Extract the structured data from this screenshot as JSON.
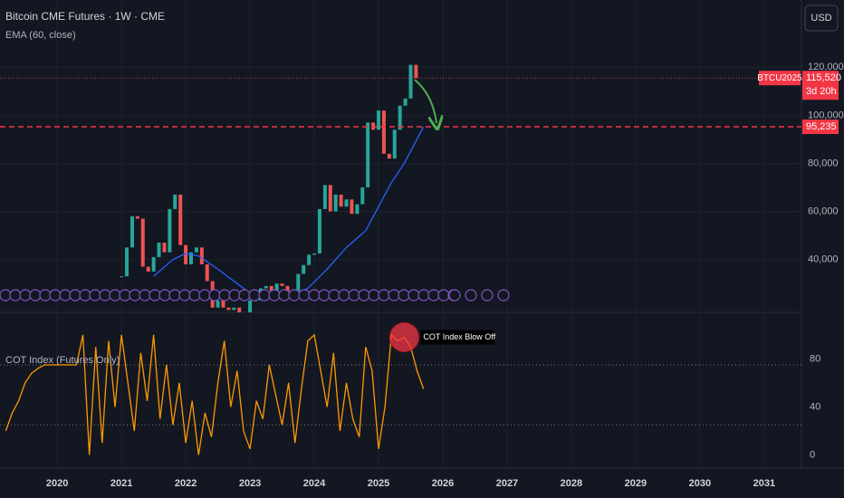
{
  "chart_data": [
    {
      "type": "candlestick",
      "title": "Bitcoin CME Futures · 1W · CME",
      "x": [
        2021.0,
        2021.083,
        2021.167,
        2021.25,
        2021.333,
        2021.417,
        2021.5,
        2021.583,
        2021.667,
        2021.75,
        2021.833,
        2021.917,
        2022.0,
        2022.083,
        2022.167,
        2022.25,
        2022.333,
        2022.417,
        2022.5,
        2022.583,
        2022.667,
        2022.75,
        2022.833,
        2022.917,
        2023.0,
        2023.083,
        2023.167,
        2023.25,
        2023.333,
        2023.417,
        2023.5,
        2023.583,
        2023.667,
        2023.75,
        2023.833,
        2023.917,
        2024.0,
        2024.083,
        2024.167,
        2024.25,
        2024.333,
        2024.417,
        2024.5,
        2024.583,
        2024.667,
        2024.75,
        2024.833,
        2024.917,
        2025.0,
        2025.083,
        2025.167,
        2025.25,
        2025.333,
        2025.417,
        2025.5,
        2025.583
      ],
      "values": [
        33000,
        45000,
        58000,
        57000,
        37000,
        35000,
        41000,
        47000,
        43000,
        61000,
        67000,
        46000,
        38000,
        43000,
        45000,
        38000,
        31000,
        20000,
        23000,
        20000,
        19000,
        20000,
        17000,
        16500,
        23000,
        23000,
        28000,
        29000,
        27000,
        30000,
        29000,
        26000,
        27000,
        34000,
        37700,
        42000,
        42500,
        61000,
        71000,
        60000,
        67000,
        62000,
        65000,
        59000,
        63000,
        70000,
        97000,
        94000,
        102000,
        84000,
        82000,
        94000,
        104000,
        107000,
        121000,
        115520
      ],
      "up_color": "#26a69a",
      "down_color": "#ef5350",
      "overlay": {
        "name": "EMA (60, close)",
        "color": "#2962ff",
        "x": [
          2021.5,
          2021.8,
          2022.0,
          2022.2,
          2022.5,
          2022.8,
          2023.0,
          2023.3,
          2023.6,
          2023.9,
          2024.2,
          2024.5,
          2024.8,
          2025.0,
          2025.2,
          2025.4,
          2025.7
        ],
        "values": [
          33000,
          40000,
          42500,
          41500,
          36000,
          30000,
          26000,
          24000,
          25000,
          28000,
          36000,
          45000,
          52000,
          62000,
          72000,
          80000,
          95235
        ]
      },
      "price_line": {
        "label": "BTCU2025",
        "value": 115520,
        "value_label": "115,520",
        "countdown": "3d 20h",
        "color": "#f23645"
      },
      "level": {
        "value": 95235,
        "value_label": "95,235",
        "color": "#f23645"
      },
      "ylim": [
        18000,
        148000
      ],
      "yticks": [
        {
          "value": 40000,
          "label": "40,000"
        },
        {
          "value": 60000,
          "label": "60,000"
        },
        {
          "value": 80000,
          "label": "80,000"
        },
        {
          "value": 100000,
          "label": "100,000"
        },
        {
          "value": 120000,
          "label": "120,000"
        }
      ],
      "xlim": [
        2019.11,
        2031.58
      ],
      "xticks": [
        2020,
        2021,
        2022,
        2023,
        2024,
        2025,
        2026,
        2027,
        2028,
        2029,
        2030,
        2031
      ]
    },
    {
      "type": "line",
      "title": "COT Index (Futures Only)",
      "x": [
        2019.2,
        2019.3,
        2019.4,
        2019.5,
        2019.6,
        2019.7,
        2019.8,
        2019.9,
        2020.0,
        2020.1,
        2020.2,
        2020.3,
        2020.4,
        2020.5,
        2020.6,
        2020.7,
        2020.8,
        2020.9,
        2021.0,
        2021.1,
        2021.2,
        2021.3,
        2021.4,
        2021.5,
        2021.6,
        2021.7,
        2021.8,
        2021.9,
        2022.0,
        2022.1,
        2022.2,
        2022.3,
        2022.4,
        2022.5,
        2022.6,
        2022.7,
        2022.8,
        2022.9,
        2023.0,
        2023.1,
        2023.2,
        2023.3,
        2023.4,
        2023.5,
        2023.6,
        2023.7,
        2023.8,
        2023.9,
        2024.0,
        2024.1,
        2024.2,
        2024.3,
        2024.4,
        2024.5,
        2024.6,
        2024.7,
        2024.8,
        2024.9,
        2025.0,
        2025.1,
        2025.2,
        2025.3,
        2025.4,
        2025.5,
        2025.6,
        2025.7
      ],
      "values": [
        20,
        35,
        45,
        60,
        68,
        72,
        75,
        75,
        75,
        75,
        75,
        75,
        100,
        0,
        90,
        10,
        95,
        40,
        100,
        60,
        20,
        85,
        45,
        100,
        30,
        75,
        25,
        60,
        10,
        45,
        0,
        35,
        15,
        60,
        95,
        40,
        70,
        20,
        5,
        45,
        30,
        75,
        50,
        25,
        60,
        10,
        55,
        95,
        100,
        70,
        40,
        85,
        20,
        60,
        30,
        15,
        90,
        70,
        5,
        40,
        100,
        95,
        98,
        90,
        70,
        55
      ],
      "color": "#ff9800",
      "levels": [
        75,
        25
      ],
      "annotation": {
        "text": "COT Index Blow Off",
        "x": 2025.4,
        "y": 98
      },
      "ylim": [
        -11,
        118
      ],
      "yticks": [
        0,
        40,
        80
      ],
      "xlim": [
        2019.11,
        2031.58
      ]
    }
  ],
  "ui": {
    "currency_button": "USD"
  }
}
